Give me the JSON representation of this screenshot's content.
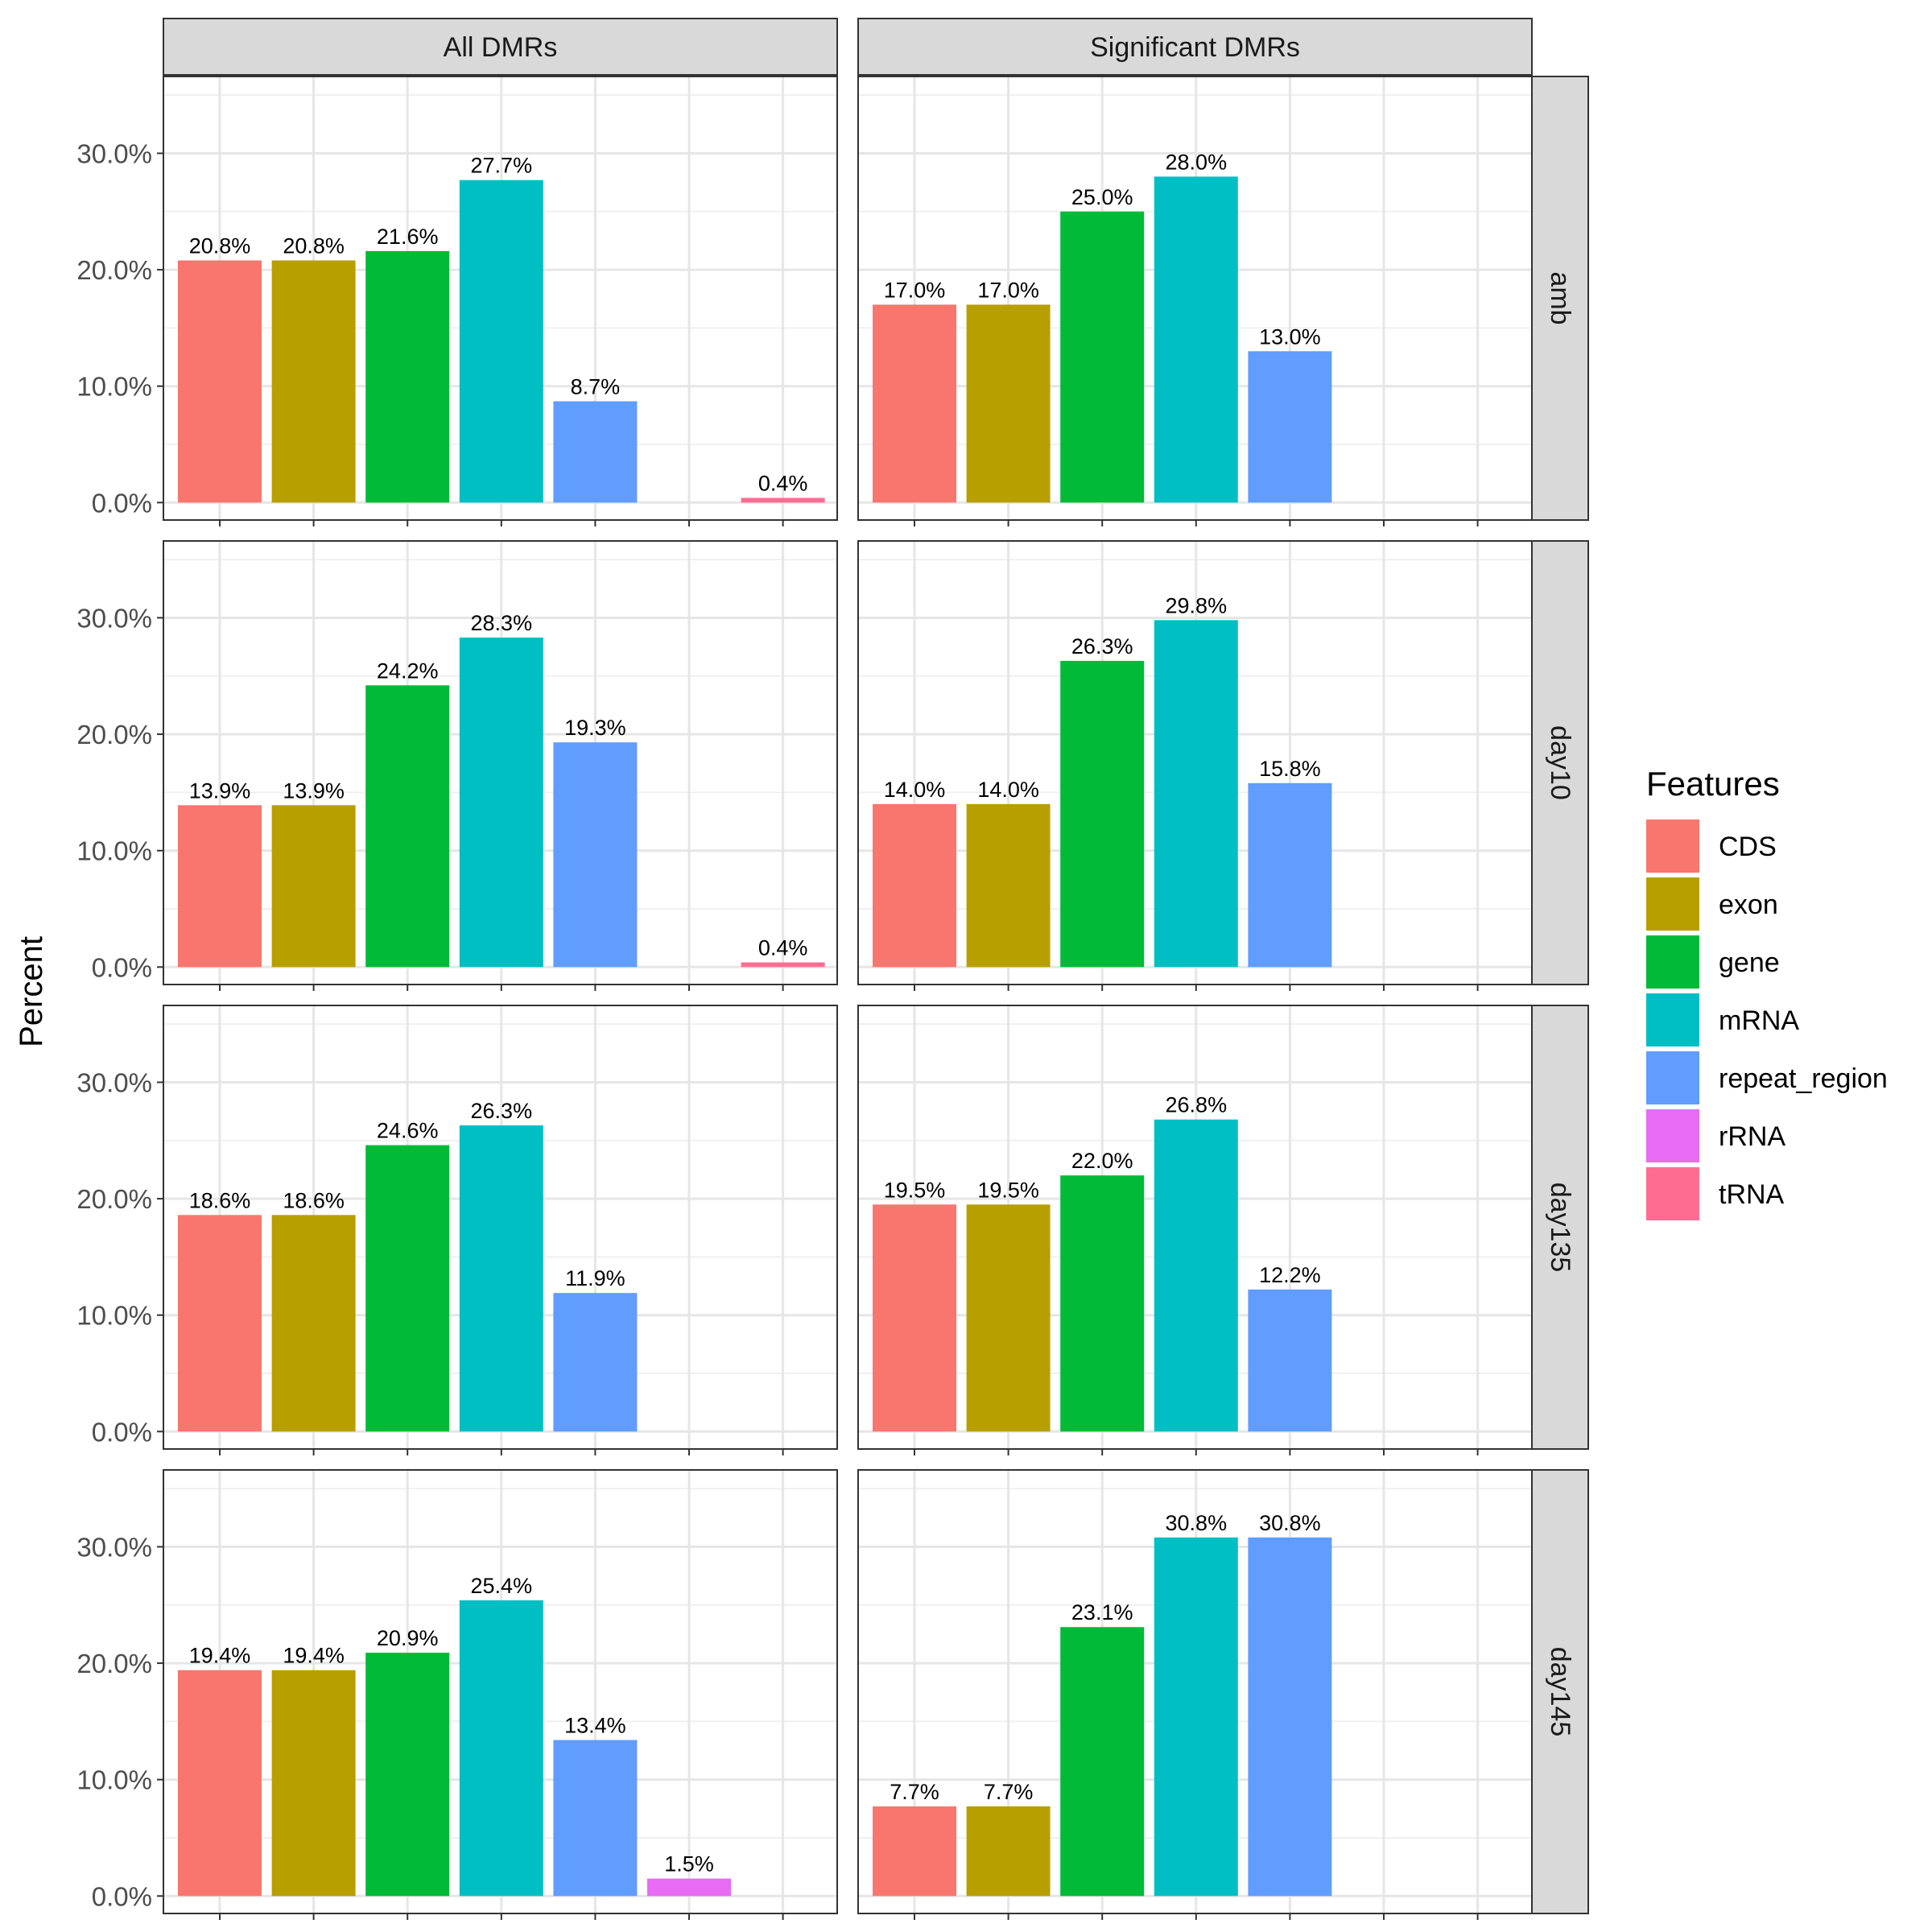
{
  "chart_data": {
    "type": "bar",
    "ylabel": "Percent",
    "ylim": [
      0,
      35
    ],
    "yticks": [
      "0.0%",
      "10.0%",
      "20.0%",
      "30.0%"
    ],
    "ytick_values": [
      0,
      10,
      20,
      30
    ],
    "grid": true,
    "legend": {
      "title": "Features",
      "position": "right",
      "entries": [
        {
          "name": "CDS",
          "color": "#F8766D"
        },
        {
          "name": "exon",
          "color": "#B79F00"
        },
        {
          "name": "gene",
          "color": "#00BA38"
        },
        {
          "name": "mRNA",
          "color": "#00BFC4"
        },
        {
          "name": "repeat_region",
          "color": "#619CFF"
        },
        {
          "name": "rRNA",
          "color": "#E76BF3"
        },
        {
          "name": "tRNA",
          "color": "#FF6C91"
        }
      ]
    },
    "columns": [
      "All DMRs",
      "Significant DMRs"
    ],
    "rows": [
      "amb",
      "day10",
      "day135",
      "day145"
    ],
    "categories": [
      "CDS",
      "exon",
      "gene",
      "mRNA",
      "repeat_region",
      "rRNA",
      "tRNA"
    ],
    "panels": [
      {
        "column": "All DMRs",
        "row": "amb",
        "bars": [
          {
            "feature": "CDS",
            "value": 20.8,
            "label": "20.8%"
          },
          {
            "feature": "exon",
            "value": 20.8,
            "label": "20.8%"
          },
          {
            "feature": "gene",
            "value": 21.6,
            "label": "21.6%"
          },
          {
            "feature": "mRNA",
            "value": 27.7,
            "label": "27.7%"
          },
          {
            "feature": "repeat_region",
            "value": 8.7,
            "label": "8.7%"
          },
          {
            "feature": "tRNA",
            "value": 0.4,
            "label": "0.4%"
          }
        ]
      },
      {
        "column": "Significant DMRs",
        "row": "amb",
        "bars": [
          {
            "feature": "CDS",
            "value": 17.0,
            "label": "17.0%"
          },
          {
            "feature": "exon",
            "value": 17.0,
            "label": "17.0%"
          },
          {
            "feature": "gene",
            "value": 25.0,
            "label": "25.0%"
          },
          {
            "feature": "mRNA",
            "value": 28.0,
            "label": "28.0%"
          },
          {
            "feature": "repeat_region",
            "value": 13.0,
            "label": "13.0%"
          }
        ]
      },
      {
        "column": "All DMRs",
        "row": "day10",
        "bars": [
          {
            "feature": "CDS",
            "value": 13.9,
            "label": "13.9%"
          },
          {
            "feature": "exon",
            "value": 13.9,
            "label": "13.9%"
          },
          {
            "feature": "gene",
            "value": 24.2,
            "label": "24.2%"
          },
          {
            "feature": "mRNA",
            "value": 28.3,
            "label": "28.3%"
          },
          {
            "feature": "repeat_region",
            "value": 19.3,
            "label": "19.3%"
          },
          {
            "feature": "tRNA",
            "value": 0.4,
            "label": "0.4%"
          }
        ]
      },
      {
        "column": "Significant DMRs",
        "row": "day10",
        "bars": [
          {
            "feature": "CDS",
            "value": 14.0,
            "label": "14.0%"
          },
          {
            "feature": "exon",
            "value": 14.0,
            "label": "14.0%"
          },
          {
            "feature": "gene",
            "value": 26.3,
            "label": "26.3%"
          },
          {
            "feature": "mRNA",
            "value": 29.8,
            "label": "29.8%"
          },
          {
            "feature": "repeat_region",
            "value": 15.8,
            "label": "15.8%"
          }
        ]
      },
      {
        "column": "All DMRs",
        "row": "day135",
        "bars": [
          {
            "feature": "CDS",
            "value": 18.6,
            "label": "18.6%"
          },
          {
            "feature": "exon",
            "value": 18.6,
            "label": "18.6%"
          },
          {
            "feature": "gene",
            "value": 24.6,
            "label": "24.6%"
          },
          {
            "feature": "mRNA",
            "value": 26.3,
            "label": "26.3%"
          },
          {
            "feature": "repeat_region",
            "value": 11.9,
            "label": "11.9%"
          }
        ]
      },
      {
        "column": "Significant DMRs",
        "row": "day135",
        "bars": [
          {
            "feature": "CDS",
            "value": 19.5,
            "label": "19.5%"
          },
          {
            "feature": "exon",
            "value": 19.5,
            "label": "19.5%"
          },
          {
            "feature": "gene",
            "value": 22.0,
            "label": "22.0%"
          },
          {
            "feature": "mRNA",
            "value": 26.8,
            "label": "26.8%"
          },
          {
            "feature": "repeat_region",
            "value": 12.2,
            "label": "12.2%"
          }
        ]
      },
      {
        "column": "All DMRs",
        "row": "day145",
        "bars": [
          {
            "feature": "CDS",
            "value": 19.4,
            "label": "19.4%"
          },
          {
            "feature": "exon",
            "value": 19.4,
            "label": "19.4%"
          },
          {
            "feature": "gene",
            "value": 20.9,
            "label": "20.9%"
          },
          {
            "feature": "mRNA",
            "value": 25.4,
            "label": "25.4%"
          },
          {
            "feature": "repeat_region",
            "value": 13.4,
            "label": "13.4%"
          },
          {
            "feature": "rRNA",
            "value": 1.5,
            "label": "1.5%"
          }
        ]
      },
      {
        "column": "Significant DMRs",
        "row": "day145",
        "bars": [
          {
            "feature": "CDS",
            "value": 7.7,
            "label": "7.7%"
          },
          {
            "feature": "exon",
            "value": 7.7,
            "label": "7.7%"
          },
          {
            "feature": "gene",
            "value": 23.1,
            "label": "23.1%"
          },
          {
            "feature": "mRNA",
            "value": 30.8,
            "label": "30.8%"
          },
          {
            "feature": "repeat_region",
            "value": 30.8,
            "label": "30.8%"
          }
        ]
      }
    ]
  }
}
